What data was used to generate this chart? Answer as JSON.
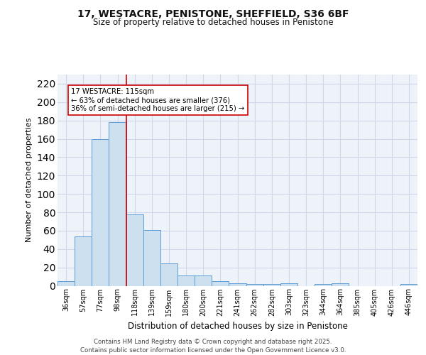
{
  "title_line1": "17, WESTACRE, PENISTONE, SHEFFIELD, S36 6BF",
  "title_line2": "Size of property relative to detached houses in Penistone",
  "xlabel": "Distribution of detached houses by size in Penistone",
  "ylabel": "Number of detached properties",
  "bar_labels": [
    "36sqm",
    "57sqm",
    "77sqm",
    "98sqm",
    "118sqm",
    "139sqm",
    "159sqm",
    "180sqm",
    "200sqm",
    "221sqm",
    "241sqm",
    "262sqm",
    "282sqm",
    "303sqm",
    "323sqm",
    "344sqm",
    "364sqm",
    "385sqm",
    "405sqm",
    "426sqm",
    "446sqm"
  ],
  "bar_values": [
    5,
    54,
    160,
    178,
    78,
    61,
    24,
    11,
    11,
    5,
    3,
    2,
    2,
    3,
    0,
    2,
    3,
    0,
    0,
    0,
    2
  ],
  "bar_color": "#cce0f0",
  "bar_edge_color": "#5b9bd5",
  "vline_index": 4,
  "vline_color": "#cc0000",
  "annotation_text": "17 WESTACRE: 115sqm\n← 63% of detached houses are smaller (376)\n36% of semi-detached houses are larger (215) →",
  "annotation_box_color": "#ffffff",
  "annotation_box_edge": "#cc0000",
  "ylim": [
    0,
    230
  ],
  "yticks": [
    0,
    20,
    40,
    60,
    80,
    100,
    120,
    140,
    160,
    180,
    200,
    220
  ],
  "grid_color": "#d0d8e8",
  "footer_text": "Contains HM Land Registry data © Crown copyright and database right 2025.\nContains public sector information licensed under the Open Government Licence v3.0.",
  "bg_color": "#eef2f9",
  "title_fontsize": 10,
  "subtitle_fontsize": 8.5
}
